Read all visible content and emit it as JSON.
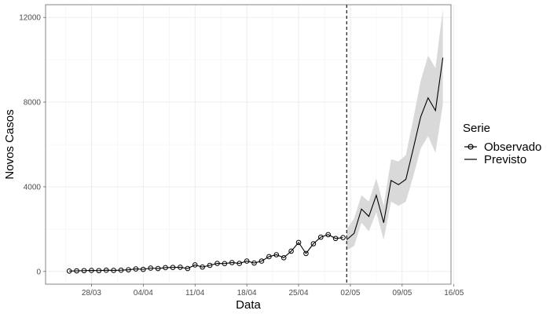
{
  "chart_data": {
    "type": "line",
    "xlabel": "Data",
    "ylabel": "Novos Casos",
    "x_tick_labels": [
      "28/03",
      "04/04",
      "11/04",
      "18/04",
      "25/04",
      "02/05",
      "09/05",
      "16/05"
    ],
    "y_tick_labels": [
      "0",
      "4000",
      "8000",
      "12000"
    ],
    "y_ticks": [
      0,
      4000,
      8000,
      12000
    ],
    "ylim": [
      -600,
      12600
    ],
    "x_axis_unit": "days since 24/03",
    "xlim": [
      -2.2,
      52.6
    ],
    "x_ticks": [
      4,
      11,
      18,
      25,
      32,
      39,
      46,
      53
    ],
    "grid": true,
    "vline_x": 38.5,
    "legend": {
      "title": "Serie",
      "position": "right",
      "entries": [
        {
          "label": "Observado",
          "style": "line-with-points"
        },
        {
          "label": "Previsto",
          "style": "line"
        }
      ]
    },
    "observed": {
      "name": "Observado",
      "x": [
        1,
        2,
        3,
        4,
        5,
        6,
        7,
        8,
        9,
        10,
        11,
        12,
        13,
        14,
        15,
        16,
        17,
        18,
        19,
        20,
        21,
        22,
        23,
        24,
        25,
        26,
        27,
        28,
        29,
        30,
        31,
        32,
        33,
        34,
        35,
        36,
        37,
        38
      ],
      "y": [
        20,
        30,
        40,
        50,
        40,
        60,
        50,
        60,
        80,
        120,
        100,
        160,
        140,
        180,
        190,
        200,
        140,
        310,
        210,
        290,
        380,
        370,
        420,
        380,
        490,
        400,
        490,
        700,
        790,
        650,
        960,
        1370,
        850,
        1310,
        1620,
        1740,
        1560,
        1600
      ]
    },
    "forecast": {
      "name": "Previsto",
      "x": [
        38.5,
        39.5,
        40.5,
        41.5,
        42.5,
        43.5,
        44.5,
        45.5,
        46.5,
        47.5,
        48.5,
        49.5,
        50.5,
        51.5
      ],
      "y": [
        1500,
        1800,
        2950,
        2600,
        3600,
        2300,
        4300,
        4100,
        4350,
        5800,
        7300,
        8200,
        7600,
        10100
      ],
      "lower": [
        1000,
        1200,
        2300,
        1900,
        2800,
        1500,
        3300,
        3100,
        3300,
        4500,
        5800,
        6400,
        5600,
        7900
      ],
      "upper": [
        2000,
        2500,
        3600,
        3300,
        4400,
        3100,
        5300,
        5200,
        5500,
        7200,
        9000,
        10200,
        9600,
        12400
      ]
    }
  }
}
